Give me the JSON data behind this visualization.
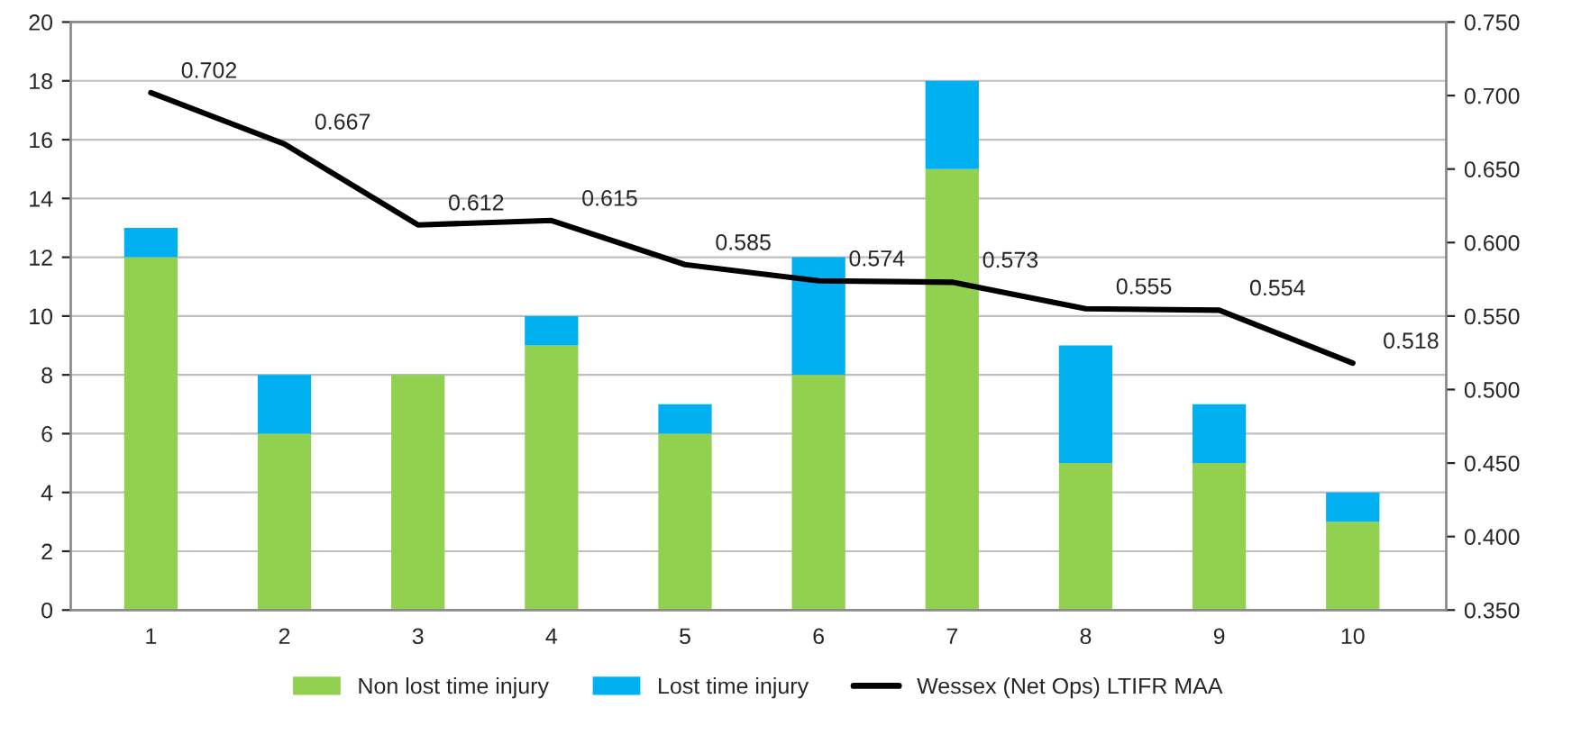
{
  "chart_data": {
    "type": "bar",
    "stacked": true,
    "categories": [
      "1",
      "2",
      "3",
      "4",
      "5",
      "6",
      "7",
      "8",
      "9",
      "10"
    ],
    "series": [
      {
        "name": "Non lost time injury",
        "color": "#92d050",
        "values": [
          12,
          6,
          8,
          9,
          6,
          8,
          15,
          5,
          5,
          3
        ]
      },
      {
        "name": "Lost time injury",
        "color": "#00b0f0",
        "values": [
          1,
          2,
          0,
          1,
          1,
          4,
          3,
          4,
          2,
          1
        ]
      },
      {
        "name": "Wessex (Net Ops) LTIFR MAA",
        "type": "line",
        "axis": "y2",
        "color": "#000000",
        "data_labels": true,
        "values": [
          0.702,
          0.667,
          0.612,
          0.615,
          0.585,
          0.574,
          0.573,
          0.555,
          0.554,
          0.518
        ]
      }
    ],
    "ylim": [
      0,
      20
    ],
    "yticks": [
      0,
      2,
      4,
      6,
      8,
      10,
      12,
      14,
      16,
      18,
      20
    ],
    "y2lim": [
      0.35,
      0.75
    ],
    "y2ticks": [
      {
        "value": 0.35,
        "label": "0.350"
      },
      {
        "value": 0.4,
        "label": "0.400"
      },
      {
        "value": 0.45,
        "label": "0.450"
      },
      {
        "value": 0.5,
        "label": "0.500"
      },
      {
        "value": 0.55,
        "label": "0.550"
      },
      {
        "value": 0.6,
        "label": "0.600"
      },
      {
        "value": 0.65,
        "label": "0.650"
      },
      {
        "value": 0.7,
        "label": "0.700"
      },
      {
        "value": 0.75,
        "label": "0.750"
      }
    ],
    "grid": "y",
    "legend": "bottom",
    "marker": "none",
    "line_style": "solid"
  }
}
